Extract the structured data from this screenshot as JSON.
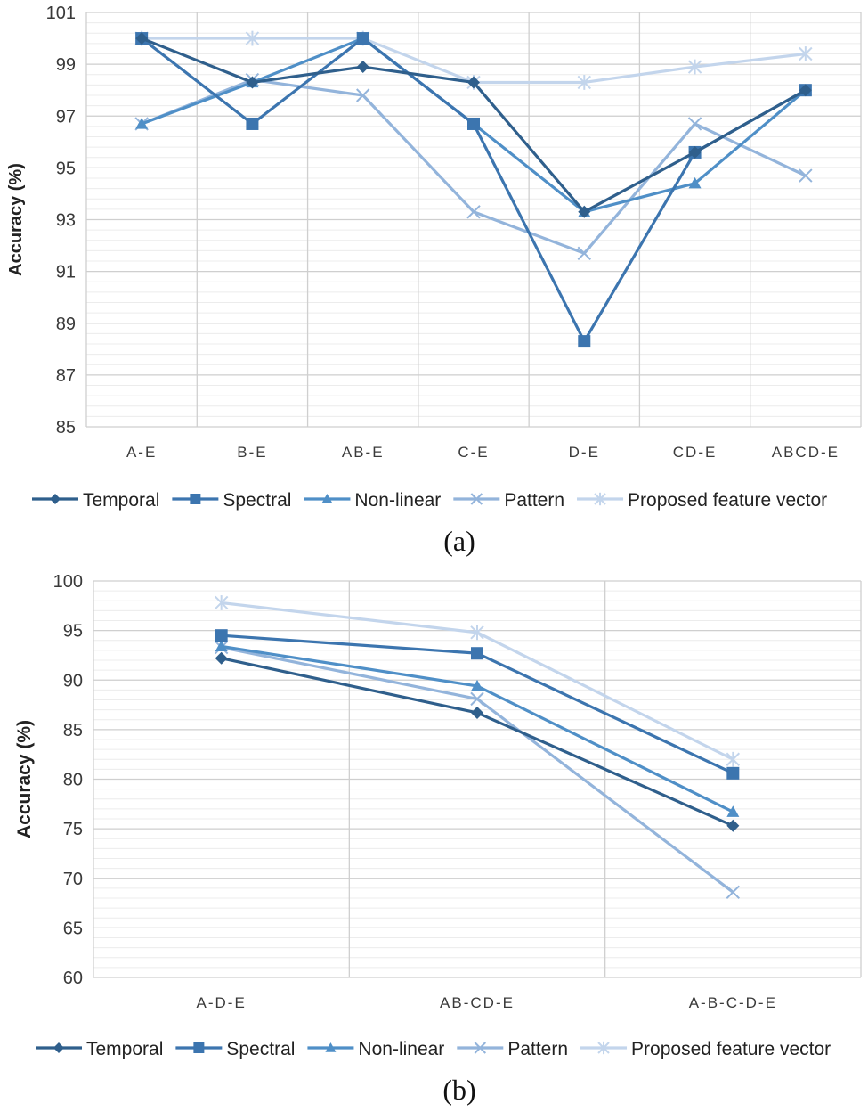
{
  "colors": {
    "Temporal": "#2F5F8C",
    "Spectral": "#3C75AF",
    "Non-linear": "#4F8FC7",
    "Pattern": "#93B4DB",
    "Proposed feature vector": "#C3D5EC"
  },
  "chart_data": [
    {
      "type": "line",
      "caption": "(a)",
      "ylabel": "Accuracy (%)",
      "xlabel": "",
      "ylim": [
        85,
        101
      ],
      "yticks": [
        85,
        87,
        89,
        91,
        93,
        95,
        97,
        99,
        101
      ],
      "categories": [
        "A-E",
        "B-E",
        "AB-E",
        "C-E",
        "D-E",
        "CD-E",
        "ABCD-E"
      ],
      "legend_position": "bottom",
      "series": [
        {
          "name": "Temporal",
          "marker": "diamond",
          "values": [
            100,
            98.3,
            98.9,
            98.3,
            93.3,
            95.6,
            98
          ]
        },
        {
          "name": "Spectral",
          "marker": "square",
          "values": [
            100,
            96.7,
            100,
            96.7,
            88.3,
            95.6,
            98
          ]
        },
        {
          "name": "Non-linear",
          "marker": "triangle",
          "values": [
            96.7,
            98.3,
            100,
            96.7,
            93.3,
            94.4,
            98
          ]
        },
        {
          "name": "Pattern",
          "marker": "x",
          "values": [
            96.7,
            98.4,
            97.8,
            93.3,
            91.7,
            96.7,
            94.7
          ]
        },
        {
          "name": "Proposed feature vector",
          "marker": "star",
          "values": [
            100,
            100,
            100,
            98.3,
            98.3,
            98.9,
            99.4
          ]
        }
      ]
    },
    {
      "type": "line",
      "caption": "(b)",
      "ylabel": "Accuracy (%)",
      "xlabel": "",
      "ylim": [
        60,
        100
      ],
      "yticks": [
        60,
        65,
        70,
        75,
        80,
        85,
        90,
        95,
        100
      ],
      "categories": [
        "A-D-E",
        "AB-CD-E",
        "A-B-C-D-E"
      ],
      "legend_position": "bottom",
      "series": [
        {
          "name": "Temporal",
          "marker": "diamond",
          "values": [
            92.2,
            86.7,
            75.3
          ]
        },
        {
          "name": "Spectral",
          "marker": "square",
          "values": [
            94.5,
            92.7,
            80.6
          ]
        },
        {
          "name": "Non-linear",
          "marker": "triangle",
          "values": [
            93.4,
            89.4,
            76.7
          ]
        },
        {
          "name": "Pattern",
          "marker": "x",
          "values": [
            93.3,
            88.1,
            68.6
          ]
        },
        {
          "name": "Proposed feature vector",
          "marker": "star",
          "values": [
            97.8,
            94.8,
            82.0
          ]
        }
      ]
    }
  ]
}
